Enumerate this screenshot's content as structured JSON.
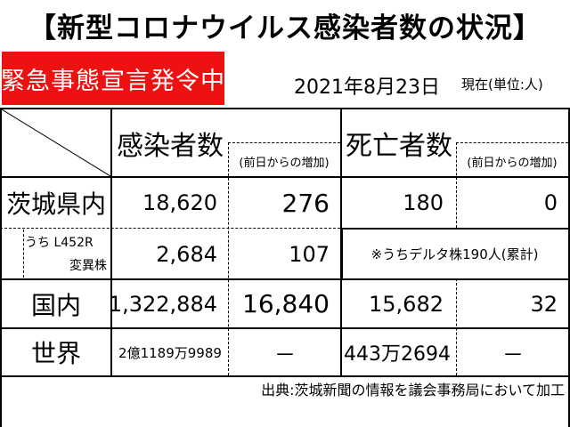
{
  "title": "【新型コロナウイルス感染者数の状況】",
  "badge": "緊急事態宣言発令中",
  "date": "2021年8月23日",
  "unit_note": "現在(単位:人)",
  "headers": {
    "infected": "感染者数",
    "infected_delta": "(前日からの増加)",
    "deaths": "死亡者数",
    "deaths_delta": "(前日からの増加)"
  },
  "rows": {
    "ibaraki": {
      "label": "茨城県内",
      "infected": "18,620",
      "infected_delta": "276",
      "deaths": "180",
      "deaths_delta": "0"
    },
    "variant": {
      "label_line1": "うち L452R",
      "label_line2": "変異株",
      "infected": "2,684",
      "infected_delta": "107",
      "note": "※うちデルタ株190人(累計)"
    },
    "domestic": {
      "label": "国内",
      "infected": "1,322,884",
      "infected_delta": "16,840",
      "deaths": "15,682",
      "deaths_delta": "32"
    },
    "world": {
      "label": "世界",
      "infected": "2億1189万9989",
      "infected_delta": "－",
      "deaths": "443万2694",
      "deaths_delta": "－"
    }
  },
  "source": "出典:茨城新聞の情報を議会事務局において加工"
}
